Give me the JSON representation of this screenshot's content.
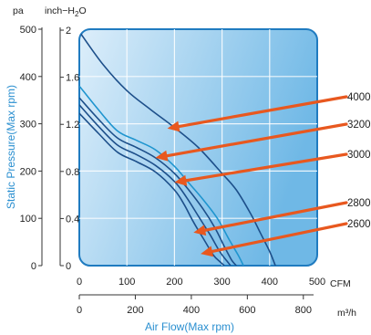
{
  "chart_data": {
    "type": "line",
    "title": "",
    "xlabel": "Air Flow(Max rpm)",
    "ylabel": "Static Pressure(Max rpm)",
    "x_unit_primary": "CFM",
    "x_unit_secondary": "m³/h",
    "y_unit_primary": "pa",
    "y_unit_secondary": "inch−H",
    "y_unit_secondary_sub": "2",
    "y_unit_secondary_end": "O",
    "xlim": [
      0,
      500
    ],
    "ylim": [
      0,
      500
    ],
    "x2lim": [
      0,
      849.5
    ],
    "y2lim": [
      0,
      2.008
    ],
    "x_ticks": [
      "0",
      "100",
      "200",
      "300",
      "400",
      "500"
    ],
    "y_ticks": [
      "0",
      "100",
      "200",
      "300",
      "400",
      "500"
    ],
    "x2_ticks": [
      "0",
      "200",
      "400",
      "600",
      "800"
    ],
    "y2_ticks": [
      "0",
      "0.4",
      "0.8",
      "1.2",
      "1.6",
      "2"
    ],
    "grid": true,
    "legend": "right, labels with arrows",
    "colors": {
      "curve_dark": "#1d4f8a",
      "curve_light": "#1f95cf",
      "arrow": "#e8581f",
      "title_blue": "#2a8fd0",
      "box_border": "#1f7bc0",
      "box_fill_start": "#ddeefa",
      "box_fill_end": "#6fb8e6"
    },
    "series": [
      {
        "name": "4000",
        "color": "#1d4f8a",
        "x": [
          0,
          50,
          100,
          150,
          200,
          250,
          300,
          330,
          360,
          380,
          400,
          412
        ],
        "y": [
          495,
          425,
          370,
          330,
          292,
          250,
          195,
          160,
          110,
          70,
          30,
          0
        ]
      },
      {
        "name": "3200",
        "color": "#1f95cf",
        "x": [
          0,
          40,
          80,
          120,
          160,
          200,
          230,
          260,
          290,
          315,
          335,
          345
        ],
        "y": [
          380,
          330,
          285,
          265,
          245,
          210,
          175,
          140,
          100,
          55,
          20,
          0
        ]
      },
      {
        "name": "3000",
        "color": "#1d4f8a",
        "x": [
          0,
          40,
          80,
          120,
          160,
          200,
          230,
          260,
          285,
          305,
          320,
          330
        ],
        "y": [
          355,
          310,
          270,
          250,
          228,
          195,
          160,
          120,
          80,
          40,
          12,
          0
        ]
      },
      {
        "name": "2800",
        "color": "#1d4f8a",
        "x": [
          0,
          40,
          80,
          120,
          160,
          200,
          225,
          250,
          275,
          295,
          310,
          318
        ],
        "y": [
          340,
          295,
          255,
          235,
          212,
          178,
          145,
          105,
          65,
          30,
          10,
          0
        ]
      },
      {
        "name": "2600",
        "color": "#1d4f8a",
        "x": [
          0,
          40,
          80,
          120,
          160,
          200,
          220,
          240,
          262,
          282,
          296,
          305
        ],
        "y": [
          322,
          280,
          240,
          220,
          198,
          160,
          130,
          92,
          55,
          22,
          8,
          0
        ]
      }
    ],
    "annotations": [
      {
        "label": "4000",
        "series": "4000",
        "target": [
          185,
          290
        ]
      },
      {
        "label": "3200",
        "series": "3200",
        "target": [
          160,
          228
        ]
      },
      {
        "label": "3000",
        "series": "3000",
        "target": [
          200,
          176
        ]
      },
      {
        "label": "2800",
        "series": "2800",
        "target": [
          240,
          70
        ]
      },
      {
        "label": "2600",
        "series": "2600",
        "target": [
          255,
          25
        ]
      }
    ]
  }
}
